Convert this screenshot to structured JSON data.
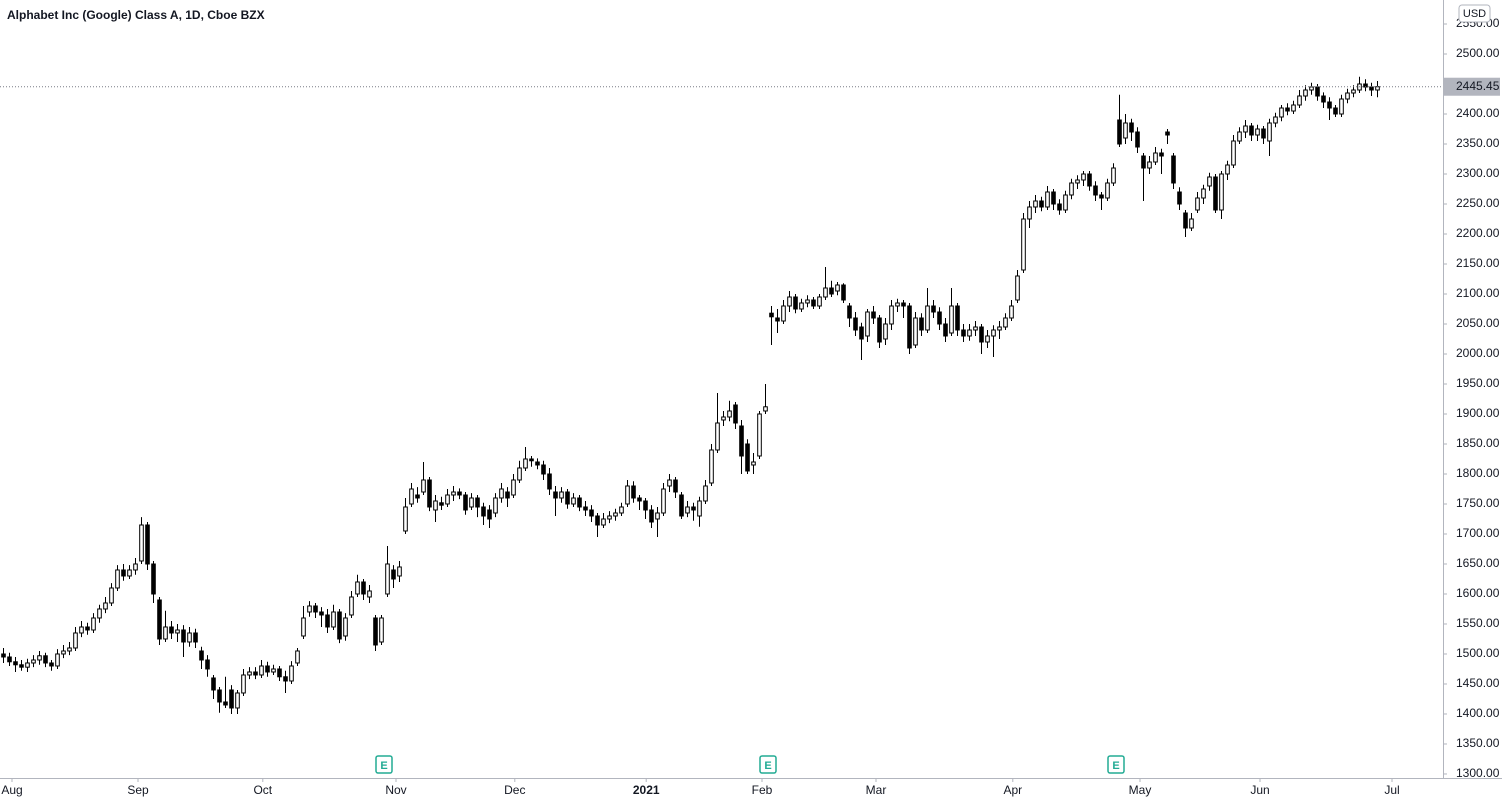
{
  "chart_data": {
    "type": "candlestick",
    "title": "Alphabet Inc (Google) Class A, 1D, Cboe BZX",
    "currency": "USD",
    "up_color": "#ffffff",
    "down_color": "#000000",
    "wick_color": "#000000",
    "ylim": [
      1293.3,
      2590
    ],
    "xlim": [
      -0.5,
      239.5
    ],
    "yticks": [
      {
        "value": 1300,
        "label": "1300.00"
      },
      {
        "value": 1350,
        "label": "1350.00"
      },
      {
        "value": 1400,
        "label": "1400.00"
      },
      {
        "value": 1450,
        "label": "1450.00"
      },
      {
        "value": 1500,
        "label": "1500.00"
      },
      {
        "value": 1550,
        "label": "1550.00"
      },
      {
        "value": 1600,
        "label": "1600.00"
      },
      {
        "value": 1650,
        "label": "1650.00"
      },
      {
        "value": 1700,
        "label": "1700.00"
      },
      {
        "value": 1750,
        "label": "1750.00"
      },
      {
        "value": 1800,
        "label": "1800.00"
      },
      {
        "value": 1850,
        "label": "1850.00"
      },
      {
        "value": 1900,
        "label": "1900.00"
      },
      {
        "value": 1950,
        "label": "1950.00"
      },
      {
        "value": 2000,
        "label": "2000.00"
      },
      {
        "value": 2050,
        "label": "2050.00"
      },
      {
        "value": 2100,
        "label": "2100.00"
      },
      {
        "value": 2150,
        "label": "2150.00"
      },
      {
        "value": 2200,
        "label": "2200.00"
      },
      {
        "value": 2250,
        "label": "2250.00"
      },
      {
        "value": 2300,
        "label": "2300.00"
      },
      {
        "value": 2350,
        "label": "2350.00"
      },
      {
        "value": 2400,
        "label": "2400.00"
      },
      {
        "value": 2500,
        "label": "2500.00"
      },
      {
        "value": 2550,
        "label": "2550.00"
      }
    ],
    "xticks": [
      {
        "value": 1.5,
        "label": "Aug"
      },
      {
        "value": 22.5,
        "label": "Sep"
      },
      {
        "value": 43.3,
        "label": "Oct"
      },
      {
        "value": 65.5,
        "label": "Nov"
      },
      {
        "value": 85.3,
        "label": "Dec"
      },
      {
        "value": 107.2,
        "label": "2021"
      },
      {
        "value": 126.5,
        "label": "Feb"
      },
      {
        "value": 145.5,
        "label": "Mar"
      },
      {
        "value": 168.3,
        "label": "Apr"
      },
      {
        "value": 189.5,
        "label": "May"
      },
      {
        "value": 209.5,
        "label": "Jun"
      },
      {
        "value": 231.5,
        "label": "Jul"
      }
    ],
    "earnings": [
      {
        "x": 63.5,
        "label": "E"
      },
      {
        "x": 127.5,
        "label": "E"
      },
      {
        "x": 185.5,
        "label": "E"
      }
    ],
    "ohlc": [
      [
        1500,
        1510,
        1485,
        1495
      ],
      [
        1495,
        1502,
        1480,
        1487
      ],
      [
        1487,
        1495,
        1470,
        1482
      ],
      [
        1482,
        1490,
        1472,
        1478
      ],
      [
        1478,
        1492,
        1470,
        1485
      ],
      [
        1485,
        1498,
        1478,
        1490
      ],
      [
        1490,
        1505,
        1482,
        1497
      ],
      [
        1497,
        1502,
        1478,
        1485
      ],
      [
        1485,
        1490,
        1472,
        1480
      ],
      [
        1480,
        1508,
        1475,
        1500
      ],
      [
        1500,
        1515,
        1493,
        1505
      ],
      [
        1505,
        1520,
        1498,
        1510
      ],
      [
        1510,
        1545,
        1505,
        1535
      ],
      [
        1535,
        1555,
        1528,
        1545
      ],
      [
        1545,
        1552,
        1532,
        1540
      ],
      [
        1540,
        1568,
        1535,
        1560
      ],
      [
        1560,
        1582,
        1552,
        1575
      ],
      [
        1575,
        1595,
        1568,
        1585
      ],
      [
        1585,
        1618,
        1580,
        1610
      ],
      [
        1610,
        1648,
        1605,
        1640
      ],
      [
        1640,
        1650,
        1622,
        1630
      ],
      [
        1630,
        1648,
        1625,
        1640
      ],
      [
        1640,
        1660,
        1632,
        1650
      ],
      [
        1655,
        1728,
        1650,
        1715
      ],
      [
        1715,
        1720,
        1640,
        1650
      ],
      [
        1650,
        1655,
        1585,
        1600
      ],
      [
        1590,
        1595,
        1515,
        1525
      ],
      [
        1525,
        1572,
        1520,
        1545
      ],
      [
        1545,
        1555,
        1525,
        1535
      ],
      [
        1535,
        1550,
        1520,
        1540
      ],
      [
        1540,
        1548,
        1495,
        1520
      ],
      [
        1520,
        1545,
        1512,
        1535
      ],
      [
        1535,
        1542,
        1510,
        1520
      ],
      [
        1505,
        1512,
        1475,
        1490
      ],
      [
        1490,
        1498,
        1462,
        1475
      ],
      [
        1460,
        1465,
        1425,
        1440
      ],
      [
        1440,
        1445,
        1402,
        1420
      ],
      [
        1420,
        1462,
        1410,
        1415
      ],
      [
        1440,
        1448,
        1400,
        1410
      ],
      [
        1410,
        1440,
        1400,
        1435
      ],
      [
        1435,
        1475,
        1430,
        1465
      ],
      [
        1465,
        1478,
        1458,
        1470
      ],
      [
        1470,
        1478,
        1458,
        1465
      ],
      [
        1465,
        1490,
        1460,
        1480
      ],
      [
        1480,
        1487,
        1462,
        1470
      ],
      [
        1470,
        1482,
        1465,
        1475
      ],
      [
        1475,
        1480,
        1455,
        1462
      ],
      [
        1462,
        1472,
        1435,
        1455
      ],
      [
        1455,
        1488,
        1450,
        1480
      ],
      [
        1485,
        1510,
        1480,
        1505
      ],
      [
        1530,
        1580,
        1525,
        1560
      ],
      [
        1570,
        1588,
        1562,
        1580
      ],
      [
        1580,
        1585,
        1560,
        1570
      ],
      [
        1570,
        1578,
        1545,
        1565
      ],
      [
        1565,
        1575,
        1535,
        1545
      ],
      [
        1545,
        1582,
        1540,
        1570
      ],
      [
        1570,
        1575,
        1518,
        1525
      ],
      [
        1530,
        1568,
        1522,
        1560
      ],
      [
        1565,
        1605,
        1560,
        1595
      ],
      [
        1600,
        1632,
        1595,
        1620
      ],
      [
        1620,
        1625,
        1590,
        1600
      ],
      [
        1595,
        1615,
        1585,
        1605
      ],
      [
        1560,
        1565,
        1505,
        1515
      ],
      [
        1520,
        1565,
        1515,
        1560
      ],
      [
        1600,
        1680,
        1595,
        1650
      ],
      [
        1640,
        1648,
        1610,
        1625
      ],
      [
        1630,
        1655,
        1620,
        1645
      ],
      [
        1705,
        1760,
        1700,
        1745
      ],
      [
        1750,
        1785,
        1745,
        1775
      ],
      [
        1765,
        1778,
        1752,
        1760
      ],
      [
        1770,
        1820,
        1765,
        1790
      ],
      [
        1790,
        1795,
        1738,
        1745
      ],
      [
        1740,
        1765,
        1720,
        1755
      ],
      [
        1752,
        1762,
        1740,
        1748
      ],
      [
        1750,
        1775,
        1745,
        1765
      ],
      [
        1765,
        1780,
        1755,
        1770
      ],
      [
        1770,
        1776,
        1758,
        1765
      ],
      [
        1765,
        1770,
        1732,
        1740
      ],
      [
        1745,
        1768,
        1740,
        1760
      ],
      [
        1760,
        1765,
        1728,
        1745
      ],
      [
        1745,
        1752,
        1715,
        1730
      ],
      [
        1740,
        1748,
        1710,
        1725
      ],
      [
        1735,
        1768,
        1728,
        1760
      ],
      [
        1760,
        1785,
        1752,
        1775
      ],
      [
        1770,
        1778,
        1745,
        1760
      ],
      [
        1765,
        1800,
        1760,
        1790
      ],
      [
        1790,
        1822,
        1785,
        1810
      ],
      [
        1810,
        1845,
        1805,
        1825
      ],
      [
        1825,
        1830,
        1812,
        1822
      ],
      [
        1820,
        1826,
        1808,
        1815
      ],
      [
        1815,
        1822,
        1790,
        1800
      ],
      [
        1800,
        1810,
        1765,
        1775
      ],
      [
        1770,
        1780,
        1730,
        1760
      ],
      [
        1760,
        1778,
        1752,
        1770
      ],
      [
        1770,
        1775,
        1742,
        1750
      ],
      [
        1750,
        1768,
        1745,
        1760
      ],
      [
        1760,
        1765,
        1738,
        1745
      ],
      [
        1745,
        1755,
        1730,
        1740
      ],
      [
        1740,
        1748,
        1720,
        1730
      ],
      [
        1730,
        1735,
        1695,
        1715
      ],
      [
        1715,
        1735,
        1710,
        1725
      ],
      [
        1725,
        1738,
        1718,
        1730
      ],
      [
        1730,
        1742,
        1722,
        1735
      ],
      [
        1735,
        1752,
        1730,
        1745
      ],
      [
        1750,
        1790,
        1745,
        1780
      ],
      [
        1780,
        1788,
        1752,
        1760
      ],
      [
        1760,
        1765,
        1740,
        1755
      ],
      [
        1755,
        1760,
        1725,
        1740
      ],
      [
        1740,
        1748,
        1710,
        1720
      ],
      [
        1725,
        1745,
        1695,
        1735
      ],
      [
        1735,
        1785,
        1730,
        1775
      ],
      [
        1780,
        1800,
        1770,
        1790
      ],
      [
        1790,
        1795,
        1760,
        1770
      ],
      [
        1765,
        1770,
        1725,
        1730
      ],
      [
        1735,
        1755,
        1728,
        1745
      ],
      [
        1745,
        1752,
        1722,
        1740
      ],
      [
        1730,
        1762,
        1712,
        1755
      ],
      [
        1755,
        1790,
        1750,
        1780
      ],
      [
        1785,
        1850,
        1780,
        1840
      ],
      [
        1840,
        1935,
        1835,
        1885
      ],
      [
        1890,
        1905,
        1880,
        1895
      ],
      [
        1895,
        1922,
        1888,
        1905
      ],
      [
        1915,
        1920,
        1875,
        1885
      ],
      [
        1880,
        1890,
        1800,
        1830
      ],
      [
        1850,
        1858,
        1800,
        1805
      ],
      [
        1815,
        1835,
        1800,
        1820
      ],
      [
        1830,
        1905,
        1825,
        1900
      ],
      [
        1905,
        1950,
        1900,
        1912
      ],
      [
        2068,
        2080,
        2015,
        2062
      ],
      [
        2060,
        2075,
        2035,
        2055
      ],
      [
        2055,
        2090,
        2050,
        2080
      ],
      [
        2080,
        2105,
        2070,
        2095
      ],
      [
        2095,
        2100,
        2068,
        2075
      ],
      [
        2075,
        2092,
        2070,
        2085
      ],
      [
        2085,
        2098,
        2078,
        2090
      ],
      [
        2090,
        2095,
        2075,
        2080
      ],
      [
        2080,
        2100,
        2075,
        2095
      ],
      [
        2095,
        2145,
        2090,
        2110
      ],
      [
        2110,
        2122,
        2095,
        2100
      ],
      [
        2105,
        2120,
        2098,
        2115
      ],
      [
        2115,
        2118,
        2085,
        2090
      ],
      [
        2080,
        2085,
        2045,
        2060
      ],
      [
        2060,
        2070,
        2030,
        2040
      ],
      [
        2045,
        2052,
        1990,
        2025
      ],
      [
        2030,
        2075,
        2020,
        2070
      ],
      [
        2070,
        2080,
        2050,
        2060
      ],
      [
        2060,
        2065,
        2010,
        2020
      ],
      [
        2025,
        2060,
        2015,
        2050
      ],
      [
        2050,
        2090,
        2040,
        2080
      ],
      [
        2080,
        2092,
        2070,
        2085
      ],
      [
        2085,
        2090,
        2060,
        2080
      ],
      [
        2080,
        2085,
        2000,
        2010
      ],
      [
        2015,
        2070,
        2010,
        2060
      ],
      [
        2060,
        2068,
        2030,
        2040
      ],
      [
        2040,
        2110,
        2035,
        2080
      ],
      [
        2080,
        2090,
        2060,
        2070
      ],
      [
        2070,
        2078,
        2040,
        2050
      ],
      [
        2050,
        2060,
        2020,
        2030
      ],
      [
        2035,
        2110,
        2030,
        2080
      ],
      [
        2080,
        2085,
        2030,
        2040
      ],
      [
        2040,
        2050,
        2020,
        2030
      ],
      [
        2030,
        2050,
        2022,
        2040
      ],
      [
        2040,
        2055,
        2030,
        2045
      ],
      [
        2045,
        2050,
        2000,
        2020
      ],
      [
        2020,
        2040,
        2010,
        2030
      ],
      [
        2030,
        2048,
        1995,
        2040
      ],
      [
        2040,
        2055,
        2025,
        2045
      ],
      [
        2045,
        2068,
        2040,
        2060
      ],
      [
        2060,
        2090,
        2055,
        2080
      ],
      [
        2090,
        2140,
        2085,
        2130
      ],
      [
        2140,
        2235,
        2135,
        2225
      ],
      [
        2225,
        2255,
        2210,
        2245
      ],
      [
        2245,
        2265,
        2235,
        2255
      ],
      [
        2255,
        2262,
        2238,
        2245
      ],
      [
        2245,
        2280,
        2240,
        2270
      ],
      [
        2270,
        2275,
        2240,
        2250
      ],
      [
        2250,
        2258,
        2232,
        2240
      ],
      [
        2240,
        2272,
        2235,
        2265
      ],
      [
        2265,
        2292,
        2258,
        2285
      ],
      [
        2285,
        2298,
        2275,
        2290
      ],
      [
        2290,
        2305,
        2280,
        2300
      ],
      [
        2300,
        2305,
        2272,
        2280
      ],
      [
        2280,
        2288,
        2255,
        2265
      ],
      [
        2265,
        2270,
        2240,
        2260
      ],
      [
        2260,
        2292,
        2255,
        2285
      ],
      [
        2285,
        2318,
        2280,
        2310
      ],
      [
        2390,
        2432,
        2345,
        2350
      ],
      [
        2360,
        2400,
        2350,
        2385
      ],
      [
        2385,
        2392,
        2355,
        2370
      ],
      [
        2370,
        2378,
        2335,
        2345
      ],
      [
        2330,
        2335,
        2255,
        2310
      ],
      [
        2310,
        2330,
        2300,
        2320
      ],
      [
        2320,
        2345,
        2315,
        2335
      ],
      [
        2335,
        2342,
        2300,
        2330
      ],
      [
        2370,
        2375,
        2350,
        2365
      ],
      [
        2330,
        2335,
        2275,
        2285
      ],
      [
        2270,
        2278,
        2240,
        2250
      ],
      [
        2235,
        2240,
        2195,
        2210
      ],
      [
        2210,
        2235,
        2205,
        2225
      ],
      [
        2240,
        2270,
        2235,
        2260
      ],
      [
        2260,
        2282,
        2250,
        2275
      ],
      [
        2280,
        2302,
        2272,
        2295
      ],
      [
        2295,
        2300,
        2235,
        2240
      ],
      [
        2240,
        2305,
        2225,
        2300
      ],
      [
        2300,
        2322,
        2290,
        2315
      ],
      [
        2315,
        2365,
        2310,
        2355
      ],
      [
        2355,
        2378,
        2350,
        2370
      ],
      [
        2370,
        2390,
        2360,
        2380
      ],
      [
        2380,
        2385,
        2355,
        2365
      ],
      [
        2365,
        2382,
        2355,
        2375
      ],
      [
        2375,
        2380,
        2350,
        2360
      ],
      [
        2355,
        2392,
        2330,
        2385
      ],
      [
        2385,
        2402,
        2378,
        2395
      ],
      [
        2395,
        2415,
        2388,
        2410
      ],
      [
        2410,
        2418,
        2398,
        2405
      ],
      [
        2405,
        2422,
        2400,
        2415
      ],
      [
        2415,
        2440,
        2410,
        2430
      ],
      [
        2430,
        2448,
        2422,
        2440
      ],
      [
        2440,
        2452,
        2432,
        2445
      ],
      [
        2445,
        2450,
        2422,
        2430
      ],
      [
        2430,
        2436,
        2410,
        2420
      ],
      [
        2420,
        2428,
        2390,
        2410
      ],
      [
        2410,
        2415,
        2395,
        2400
      ],
      [
        2400,
        2432,
        2395,
        2425
      ],
      [
        2425,
        2442,
        2418,
        2435
      ],
      [
        2435,
        2448,
        2428,
        2440
      ],
      [
        2440,
        2462,
        2435,
        2450
      ],
      [
        2450,
        2458,
        2438,
        2445
      ],
      [
        2445,
        2452,
        2430,
        2440
      ],
      [
        2440,
        2455,
        2428,
        2445.45
      ]
    ]
  }
}
